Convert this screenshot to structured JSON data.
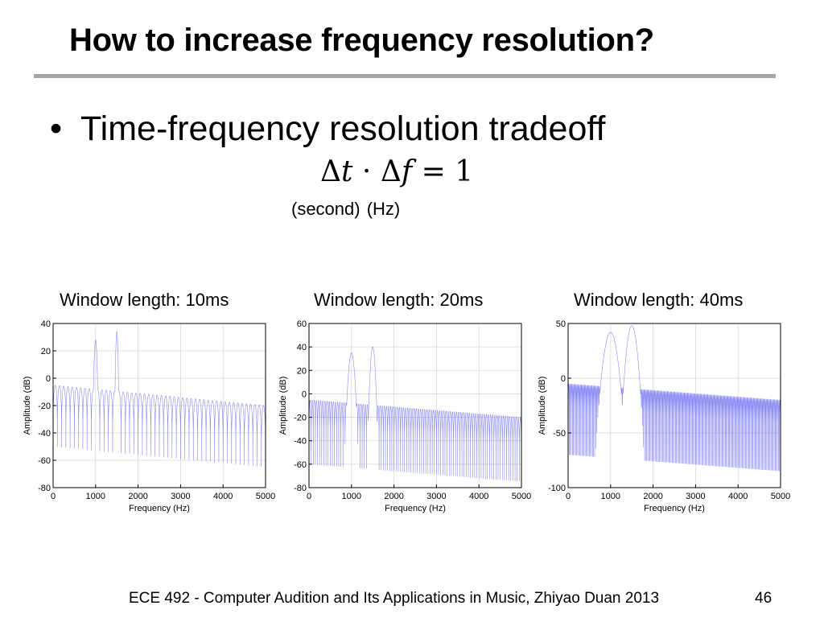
{
  "slide": {
    "title": "How to increase frequency resolution?",
    "bullet_symbol": "•",
    "bullet_text": "Time-frequency resolution tradeoff",
    "equation": {
      "delta1": "Δ",
      "var1": "t",
      "dot": " · ",
      "delta2": "Δ",
      "var2": "f",
      "rest": " = 1"
    },
    "units": "(second)  (Hz)",
    "footer": "ECE 492 - Computer Audition and Its Applications in Music, Zhiyao Duan 2013",
    "page_number": "46"
  },
  "colors": {
    "rule": "#a6a6a6",
    "line": "#6b6bf0",
    "grid": "#d9d9d9"
  },
  "chart_data": [
    {
      "type": "line",
      "title": "Window length: 10ms",
      "xlabel": "Frequency (Hz)",
      "ylabel": "Amplitude (dB)",
      "xlim": [
        0,
        5000
      ],
      "ylim": [
        -80,
        40
      ],
      "xticks": [
        0,
        1000,
        2000,
        3000,
        4000,
        5000
      ],
      "yticks": [
        -80,
        -60,
        -40,
        -20,
        0,
        20,
        40
      ],
      "grid": true,
      "series": [
        {
          "name": "spectrum",
          "peaks_hz": [
            1000,
            1500
          ],
          "peak_db": [
            28,
            34
          ],
          "floor_db_start": -5,
          "floor_db_end": -20,
          "trough_db_start": -50,
          "trough_db_end": -65,
          "ripple_period_hz": 100
        }
      ]
    },
    {
      "type": "line",
      "title": "Window length: 20ms",
      "xlabel": "Frequency (Hz)",
      "ylabel": "Amplitude (dB)",
      "xlim": [
        0,
        5000
      ],
      "ylim": [
        -80,
        60
      ],
      "xticks": [
        0,
        1000,
        2000,
        3000,
        4000,
        5000
      ],
      "yticks": [
        -80,
        -60,
        -40,
        -20,
        0,
        20,
        40,
        60
      ],
      "grid": true,
      "series": [
        {
          "name": "spectrum",
          "peaks_hz": [
            1000,
            1500
          ],
          "peak_db": [
            35,
            40
          ],
          "floor_db_start": -5,
          "floor_db_end": -20,
          "trough_db_start": -60,
          "trough_db_end": -75,
          "ripple_period_hz": 50
        }
      ]
    },
    {
      "type": "line",
      "title": "Window length: 40ms",
      "xlabel": "Frequency (Hz)",
      "ylabel": "Amplitude (dB)",
      "xlim": [
        0,
        5000
      ],
      "ylim": [
        -100,
        50
      ],
      "xticks": [
        0,
        1000,
        2000,
        3000,
        4000,
        5000
      ],
      "yticks": [
        -100,
        -50,
        0,
        50
      ],
      "grid": true,
      "series": [
        {
          "name": "spectrum",
          "peaks_hz": [
            1000,
            1500
          ],
          "peak_db": [
            42,
            48
          ],
          "floor_db_start": -5,
          "floor_db_end": -20,
          "trough_db_start": -70,
          "trough_db_end": -85,
          "ripple_period_hz": 25
        }
      ]
    }
  ]
}
